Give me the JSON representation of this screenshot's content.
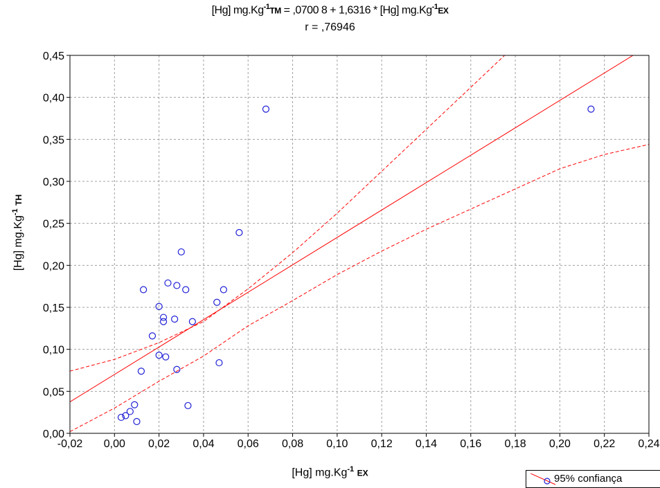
{
  "title_line1": {
    "a": "[Hg]  mg.Kg",
    "sup1": "-1",
    "sub1": "TM",
    "b": " = ,0700 8 + 1,6316 *  [Hg] mg.Kg",
    "sup2": "-1",
    "sub2": "EX"
  },
  "title_line2": "r = ,76946",
  "xlabel": {
    "text": "[Hg] mg.Kg",
    "sup": "-1",
    "sub": "EX"
  },
  "ylabel": {
    "text": "[Hg] mg.Kg",
    "sup": "-1",
    "sub": "TH"
  },
  "legend": {
    "label": "95% confiança"
  },
  "chart_data": {
    "type": "scatter",
    "xlim": [
      -0.02,
      0.24
    ],
    "ylim": [
      0.0,
      0.45
    ],
    "xticks": [
      "-0,02",
      "0,00",
      "0,02",
      "0,04",
      "0,06",
      "0,08",
      "0,10",
      "0,12",
      "0,14",
      "0,16",
      "0,18",
      "0,20",
      "0,22",
      "0,24"
    ],
    "yticks": [
      "0,00",
      "0,05",
      "0,10",
      "0,15",
      "0,20",
      "0,25",
      "0,30",
      "0,35",
      "0,40",
      "0,45"
    ],
    "grid": true,
    "regression": {
      "intercept": 0.07008,
      "slope": 1.6316,
      "r": 0.76946
    },
    "confidence_band": {
      "x": [
        -0.02,
        0.0,
        0.02,
        0.04,
        0.06,
        0.08,
        0.1,
        0.12,
        0.14,
        0.16,
        0.18,
        0.2,
        0.22,
        0.24
      ],
      "upper": [
        0.074,
        0.088,
        0.108,
        0.133,
        0.172,
        0.215,
        0.262,
        0.312,
        0.362,
        0.412,
        0.462,
        0.512,
        0.562,
        0.612
      ],
      "lower": [
        0.002,
        0.03,
        0.062,
        0.092,
        0.128,
        0.158,
        0.189,
        0.217,
        0.243,
        0.267,
        0.291,
        0.315,
        0.332,
        0.344
      ]
    },
    "points": {
      "x": [
        0.003,
        0.005,
        0.007,
        0.009,
        0.01,
        0.012,
        0.013,
        0.017,
        0.02,
        0.02,
        0.022,
        0.022,
        0.023,
        0.024,
        0.027,
        0.028,
        0.028,
        0.03,
        0.032,
        0.033,
        0.035,
        0.046,
        0.047,
        0.049,
        0.056,
        0.068,
        0.214
      ],
      "y": [
        0.019,
        0.021,
        0.026,
        0.034,
        0.014,
        0.074,
        0.171,
        0.116,
        0.151,
        0.093,
        0.138,
        0.133,
        0.091,
        0.179,
        0.136,
        0.076,
        0.176,
        0.216,
        0.171,
        0.033,
        0.133,
        0.156,
        0.084,
        0.171,
        0.239,
        0.386,
        0.386
      ]
    },
    "colors": {
      "points": "#1f1fd6",
      "line": "#ff0000",
      "grid": "#a0a0a0"
    }
  }
}
